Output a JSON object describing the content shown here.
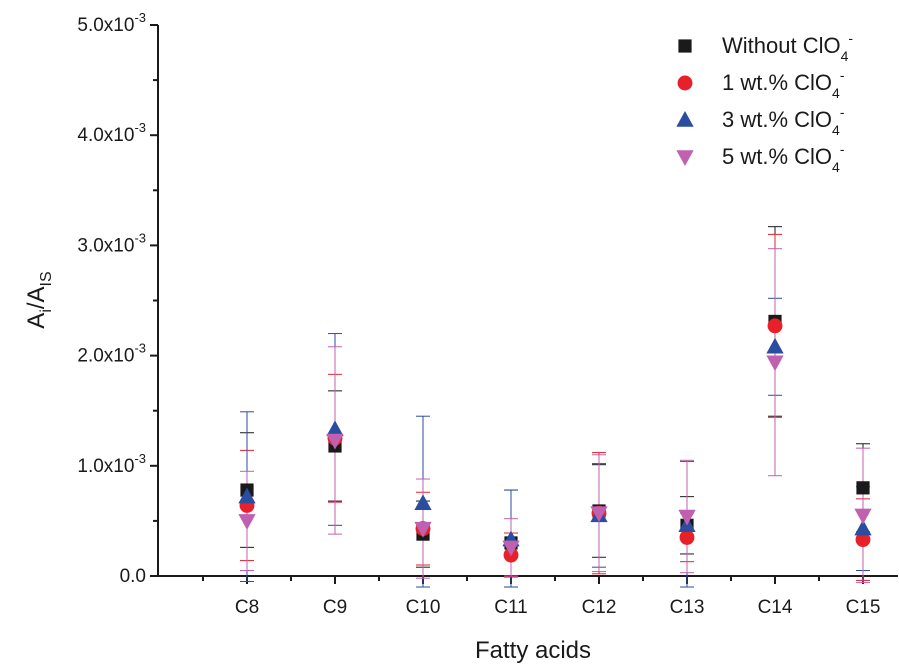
{
  "chart_data": {
    "type": "scatter",
    "xlabel": "Fatty acids",
    "ylabel_main": "A",
    "ylabel_sub1": "i",
    "ylabel_mid": "/A",
    "ylabel_sub2": "IS",
    "categories": [
      "C8",
      "C9",
      "C10",
      "C11",
      "C12",
      "C13",
      "C14",
      "C15"
    ],
    "ylim": [
      0,
      0.005
    ],
    "yticks": [
      {
        "value": 0,
        "mantissa": "0.0",
        "exp": ""
      },
      {
        "value": 0.001,
        "mantissa": "1.0x10",
        "exp": "-3"
      },
      {
        "value": 0.002,
        "mantissa": "2.0x10",
        "exp": "-3"
      },
      {
        "value": 0.003,
        "mantissa": "3.0x10",
        "exp": "-3"
      },
      {
        "value": 0.004,
        "mantissa": "4.0x10",
        "exp": "-3"
      },
      {
        "value": 0.005,
        "mantissa": "5.0x10",
        "exp": "-3"
      }
    ],
    "legend_position": "top-right",
    "series": [
      {
        "name_prefix": "Without  ClO",
        "name_sub": "4",
        "name_sup": "-",
        "marker": "square",
        "color": "#1a1a1a",
        "values": [
          0.00078,
          0.00118,
          0.00038,
          0.0003,
          0.00059,
          0.00046,
          0.00231,
          0.0008
        ],
        "errors": [
          0.00052,
          0.0005,
          0.0003,
          0.00048,
          0.00042,
          0.00026,
          0.00086,
          0.0004
        ]
      },
      {
        "name_prefix": "1 wt.%  ClO",
        "name_sub": "4",
        "name_sup": "-",
        "marker": "circle",
        "color": "#e8202a",
        "values": [
          0.00064,
          0.00125,
          0.00043,
          0.00019,
          0.00057,
          0.00035,
          0.00227,
          0.00033
        ],
        "errors": [
          0.0005,
          0.00058,
          0.00033,
          0.0002,
          0.00055,
          0.00022,
          0.00083,
          0.00037
        ]
      },
      {
        "name_prefix": "3 wt.% ClO",
        "name_sub": "4",
        "name_sup": "-",
        "marker": "triangle-up",
        "color": "#2a4da0",
        "values": [
          0.00072,
          0.00133,
          0.00066,
          0.00033,
          0.00055,
          0.00046,
          0.00208,
          0.00043
        ],
        "errors": [
          0.00077,
          0.00087,
          0.00079,
          0.00045,
          0.00047,
          0.00058,
          0.00044,
          0.00038
        ]
      },
      {
        "name_prefix": "5 wt.% ClO",
        "name_sub": "4",
        "name_sup": "-",
        "marker": "triangle-down",
        "color": "#c060b0",
        "values": [
          0.0005,
          0.00123,
          0.00043,
          0.00026,
          0.00057,
          0.00054,
          0.00194,
          0.00055
        ],
        "errors": [
          0.00045,
          0.00085,
          0.00045,
          0.00026,
          0.00053,
          0.00051,
          0.00103,
          0.00061
        ]
      }
    ]
  }
}
